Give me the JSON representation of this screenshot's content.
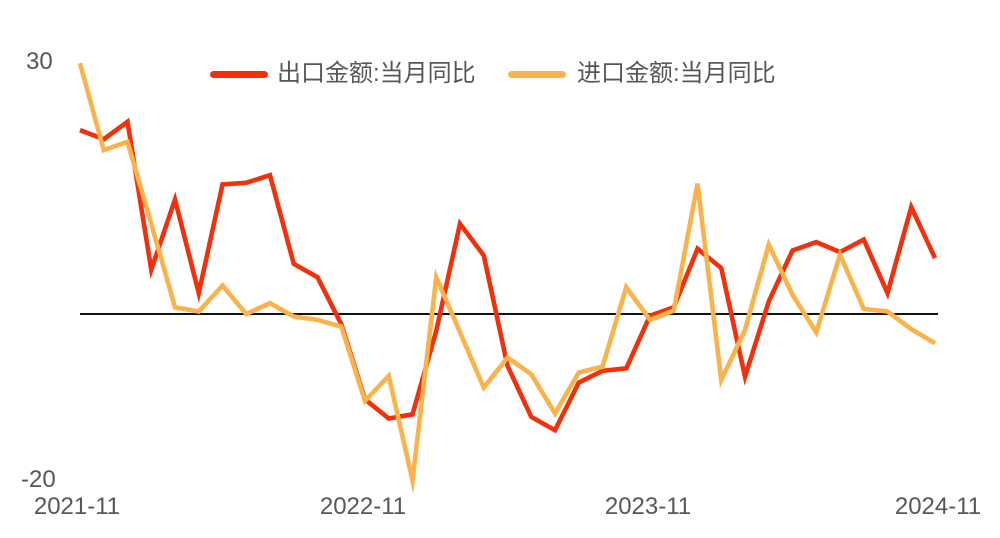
{
  "chart_data": {
    "type": "line",
    "title": "",
    "xlabel": "",
    "ylabel": "",
    "grid": false,
    "zero_line": true,
    "legend_position": "top",
    "ylim": [
      -20,
      30
    ],
    "y_tick_labels_shown": [
      "30",
      "-20"
    ],
    "x_tick_labels_shown": [
      "2021-11",
      "2022-11",
      "2023-11",
      "2024-11"
    ],
    "x": [
      "2021-11",
      "2021-12",
      "2022-01",
      "2022-02",
      "2022-03",
      "2022-04",
      "2022-05",
      "2022-06",
      "2022-07",
      "2022-08",
      "2022-09",
      "2022-10",
      "2022-11",
      "2022-12",
      "2023-01",
      "2023-02",
      "2023-03",
      "2023-04",
      "2023-05",
      "2023-06",
      "2023-07",
      "2023-08",
      "2023-09",
      "2023-10",
      "2023-11",
      "2023-12",
      "2024-01",
      "2024-02",
      "2024-03",
      "2024-04",
      "2024-05",
      "2024-06",
      "2024-07",
      "2024-08",
      "2024-09",
      "2024-10",
      "2024-11"
    ],
    "series": [
      {
        "name": "出口金额:当月同比",
        "color": "#f3300b",
        "values": [
          22.0,
          20.9,
          23.0,
          5.3,
          13.7,
          2.5,
          15.5,
          15.7,
          16.6,
          6.0,
          4.4,
          -1.2,
          -10.2,
          -12.5,
          -12.0,
          -2.0,
          10.8,
          7.0,
          -6.2,
          -12.3,
          -13.9,
          -8.2,
          -6.8,
          -6.5,
          -0.2,
          0.8,
          7.8,
          5.5,
          -7.5,
          1.5,
          7.6,
          8.6,
          7.4,
          8.9,
          2.5,
          12.8,
          6.7
        ]
      },
      {
        "name": "进口金额:当月同比",
        "color": "#fbb24a",
        "values": [
          30.0,
          19.6,
          20.6,
          10.8,
          0.8,
          0.3,
          3.4,
          0.0,
          1.3,
          -0.3,
          -0.7,
          -1.5,
          -10.4,
          -7.4,
          -19.9,
          4.4,
          -2.2,
          -8.8,
          -5.2,
          -7.2,
          -11.9,
          -7.0,
          -6.3,
          3.2,
          -0.7,
          0.4,
          15.6,
          -7.9,
          -1.9,
          8.3,
          2.3,
          -2.2,
          7.1,
          0.6,
          0.3,
          -1.8,
          -3.5
        ]
      }
    ],
    "zero_line_color": "#111111",
    "text_color": "#575757"
  }
}
